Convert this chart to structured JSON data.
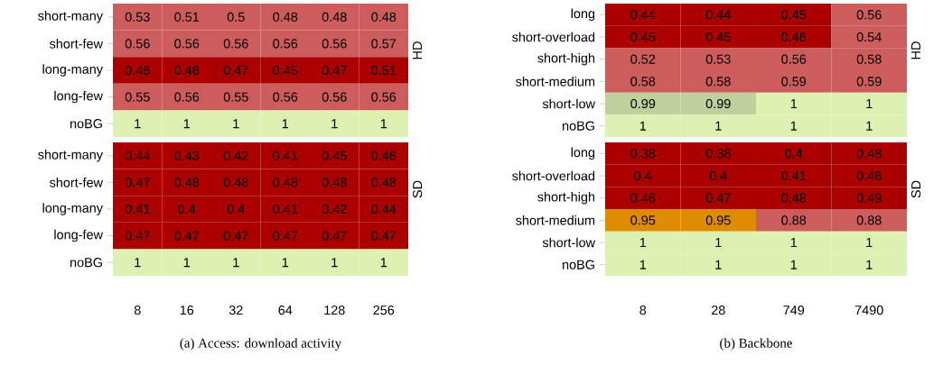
{
  "chart_data": [
    {
      "type": "heatmap",
      "categories": [
        "8",
        "16",
        "32",
        "64",
        "128",
        "256"
      ],
      "y_categories": [
        "short-many",
        "short-few",
        "long-many",
        "long-few",
        "noBG"
      ],
      "y2label": "HD",
      "tick_labels": "y",
      "data_labels": true,
      "cells": [
        [
          0.53,
          0.51,
          0.5,
          0.48,
          0.48,
          0.48
        ],
        [
          0.56,
          0.56,
          0.56,
          0.56,
          0.56,
          0.57
        ],
        [
          0.46,
          0.46,
          0.47,
          0.45,
          0.47,
          0.51
        ],
        [
          0.55,
          0.56,
          0.55,
          0.56,
          0.56,
          0.56
        ],
        [
          1,
          1,
          1,
          1,
          1,
          1
        ]
      ],
      "colors": [
        [
          "#cd5c5c",
          "#cd5c5c",
          "#cd5c5c",
          "#cd5c5c",
          "#cd5c5c",
          "#cd5c5c"
        ],
        [
          "#cd5c5c",
          "#cd5c5c",
          "#cd5c5c",
          "#cd5c5c",
          "#cd5c5c",
          "#cd5c5c"
        ],
        [
          "#aa0000",
          "#aa0000",
          "#aa0000",
          "#aa0000",
          "#aa0000",
          "#aa0000"
        ],
        [
          "#cd5c5c",
          "#cd5c5c",
          "#cd5c5c",
          "#cd5c5c",
          "#cd5c5c",
          "#cd5c5c"
        ],
        [
          "#ddf2b0",
          "#ddf2b0",
          "#ddf2b0",
          "#ddf2b0",
          "#ddf2b0",
          "#ddf2b0"
        ]
      ]
    },
    {
      "type": "heatmap",
      "categories": [
        "8",
        "16",
        "32",
        "64",
        "128",
        "256"
      ],
      "y_categories": [
        "short-many",
        "short-few",
        "long-many",
        "long-few",
        "noBG"
      ],
      "y2label": "SD",
      "data_labels": true,
      "annotations": [
        "(a)  Access: download activity"
      ],
      "cells": [
        [
          0.44,
          0.43,
          0.42,
          0.41,
          0.45,
          0.46
        ],
        [
          0.47,
          0.48,
          0.48,
          0.48,
          0.48,
          0.48
        ],
        [
          0.41,
          0.4,
          0.4,
          0.41,
          0.42,
          0.44
        ],
        [
          0.47,
          0.47,
          0.47,
          0.47,
          0.47,
          0.47
        ],
        [
          1,
          1,
          1,
          1,
          1,
          1
        ]
      ],
      "colors": [
        [
          "#aa0000",
          "#aa0000",
          "#aa0000",
          "#aa0000",
          "#aa0000",
          "#aa0000"
        ],
        [
          "#aa0000",
          "#aa0000",
          "#aa0000",
          "#aa0000",
          "#aa0000",
          "#aa0000"
        ],
        [
          "#aa0000",
          "#aa0000",
          "#aa0000",
          "#aa0000",
          "#aa0000",
          "#aa0000"
        ],
        [
          "#aa0000",
          "#aa0000",
          "#aa0000",
          "#aa0000",
          "#aa0000",
          "#aa0000"
        ],
        [
          "#ddf2b0",
          "#ddf2b0",
          "#ddf2b0",
          "#ddf2b0",
          "#ddf2b0",
          "#ddf2b0"
        ]
      ]
    },
    {
      "type": "heatmap",
      "categories": [
        "8",
        "28",
        "749",
        "7490"
      ],
      "y_categories": [
        "long",
        "short-overload",
        "short-high",
        "short-medium",
        "short-low",
        "noBG"
      ],
      "y2label": "HD",
      "tick_labels": "y",
      "data_labels": true,
      "cells": [
        [
          0.44,
          0.44,
          0.45,
          0.56
        ],
        [
          0.45,
          0.45,
          0.46,
          0.54
        ],
        [
          0.52,
          0.53,
          0.56,
          0.58
        ],
        [
          0.58,
          0.58,
          0.59,
          0.59
        ],
        [
          0.99,
          0.99,
          1,
          1
        ],
        [
          1,
          1,
          1,
          1
        ]
      ],
      "colors": [
        [
          "#aa0000",
          "#aa0000",
          "#aa0000",
          "#cd5c5c"
        ],
        [
          "#aa0000",
          "#aa0000",
          "#aa0000",
          "#cd5c5c"
        ],
        [
          "#cd5c5c",
          "#cd5c5c",
          "#cd5c5c",
          "#cd5c5c"
        ],
        [
          "#cd5c5c",
          "#cd5c5c",
          "#cd5c5c",
          "#cd5c5c"
        ],
        [
          "#c0d09c",
          "#c0d09c",
          "#ddf2b0",
          "#ddf2b0"
        ],
        [
          "#ddf2b0",
          "#ddf2b0",
          "#ddf2b0",
          "#ddf2b0"
        ]
      ]
    },
    {
      "type": "heatmap",
      "categories": [
        "8",
        "28",
        "749",
        "7490"
      ],
      "y_categories": [
        "long",
        "short-overload",
        "short-high",
        "short-medium",
        "short-low",
        "noBG"
      ],
      "y2label": "SD",
      "data_labels": true,
      "annotations": [
        "(b)  Backbone"
      ],
      "cells": [
        [
          0.38,
          0.38,
          0.4,
          0.48
        ],
        [
          0.4,
          0.4,
          0.41,
          0.46
        ],
        [
          0.46,
          0.47,
          0.48,
          0.49
        ],
        [
          0.95,
          0.95,
          0.88,
          0.88
        ],
        [
          1,
          1,
          1,
          1
        ],
        [
          1,
          1,
          1,
          1
        ]
      ],
      "colors": [
        [
          "#aa0000",
          "#aa0000",
          "#aa0000",
          "#aa0000"
        ],
        [
          "#aa0000",
          "#aa0000",
          "#aa0000",
          "#aa0000"
        ],
        [
          "#aa0000",
          "#aa0000",
          "#aa0000",
          "#aa0000"
        ],
        [
          "#dd8c00",
          "#dd8c00",
          "#cd5c5c",
          "#cd5c5c"
        ],
        [
          "#ddf2b0",
          "#ddf2b0",
          "#ddf2b0",
          "#ddf2b0"
        ],
        [
          "#ddf2b0",
          "#ddf2b0",
          "#ddf2b0",
          "#ddf2b0"
        ]
      ]
    }
  ]
}
